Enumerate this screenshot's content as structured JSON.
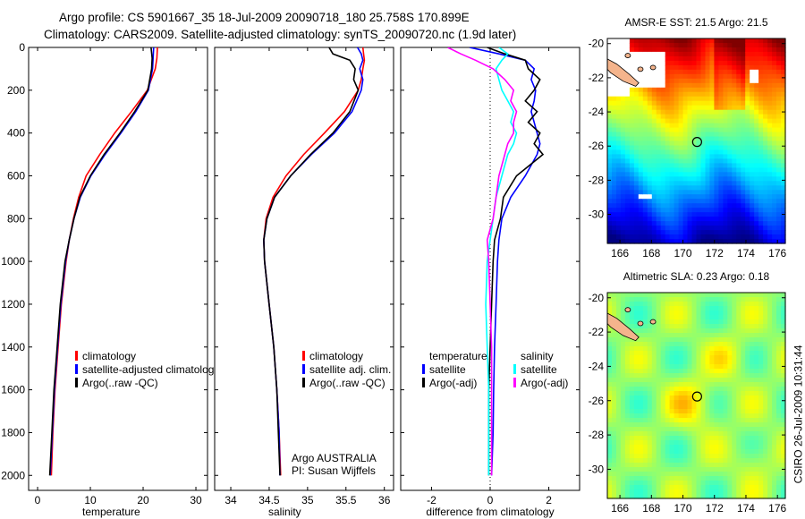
{
  "header": {
    "line1": "Argo profile: CS 5901667_35 18-Jul-2009 20090718_180 25.758S 170.899E",
    "line2": "Climatology: CARS2009. Satellite-adjusted climatology: synTS_20090720.nc (1.9d later)"
  },
  "footer": {
    "timestamp": "CSIRO 26-Jul-2009 10:31:44",
    "institution": "Argo AUSTRALIA",
    "pi": "PI: Susan Wijffels"
  },
  "colors": {
    "red": "#ff0000",
    "blue": "#0000ff",
    "black": "#000000",
    "cyan": "#00ffff",
    "magenta": "#ff00ff"
  },
  "chart_data": [
    {
      "type": "line",
      "xlabel": "temperature",
      "ylabel": "",
      "xlim": [
        -1.7,
        32.2
      ],
      "ylim": [
        2070,
        0
      ],
      "xticks": [
        0,
        10,
        20,
        30
      ],
      "yticks": [
        0,
        200,
        400,
        600,
        800,
        1000,
        1200,
        1400,
        1600,
        1800,
        2000
      ],
      "depth": [
        0,
        50,
        100,
        200,
        300,
        400,
        500,
        600,
        700,
        800,
        900,
        1000,
        1200,
        1400,
        1600,
        1800,
        2000
      ],
      "series": [
        {
          "name": "climatology",
          "color": "#ff0000",
          "values": [
            22.7,
            22.6,
            22.3,
            20.8,
            17.8,
            14.6,
            11.8,
            9.2,
            7.8,
            6.8,
            6.0,
            5.4,
            4.5,
            3.9,
            3.3,
            2.9,
            2.6
          ]
        },
        {
          "name": "satellite-adjusted climatology",
          "color": "#0000ff",
          "values": [
            22.0,
            21.9,
            21.8,
            21.0,
            18.6,
            15.8,
            12.8,
            10.1,
            8.1,
            6.9,
            6.0,
            5.3,
            4.4,
            3.8,
            3.2,
            2.8,
            2.4
          ]
        },
        {
          "name": "Argo(..raw -QC)",
          "color": "#000000",
          "values": [
            21.5,
            21.7,
            21.6,
            20.9,
            18.4,
            15.6,
            12.6,
            10.0,
            8.0,
            6.9,
            6.0,
            5.2,
            4.3,
            3.7,
            3.1,
            2.7,
            2.3
          ]
        }
      ]
    },
    {
      "type": "line",
      "xlabel": "salinity",
      "xlim": [
        33.79,
        36.12
      ],
      "ylim": [
        2070,
        0
      ],
      "xticks": [
        34,
        34.5,
        35,
        35.5,
        36
      ],
      "depth": [
        0,
        30,
        60,
        100,
        150,
        200,
        300,
        400,
        500,
        600,
        700,
        800,
        900,
        1000,
        1200,
        1400,
        1600,
        1800,
        2000
      ],
      "series": [
        {
          "name": "climatology",
          "color": "#ff0000",
          "values": [
            35.72,
            35.73,
            35.74,
            35.72,
            35.7,
            35.66,
            35.48,
            35.22,
            34.95,
            34.72,
            34.55,
            34.46,
            34.43,
            34.44,
            34.5,
            34.56,
            34.6,
            34.63,
            34.65
          ]
        },
        {
          "name": "satellite adj. clim.",
          "color": "#0000ff",
          "values": [
            35.65,
            35.7,
            35.72,
            35.68,
            35.72,
            35.7,
            35.58,
            35.35,
            35.05,
            34.78,
            34.57,
            34.47,
            34.43,
            34.44,
            34.5,
            34.56,
            34.6,
            34.63,
            34.64
          ]
        },
        {
          "name": "Argo(..raw -QC)",
          "color": "#000000",
          "values": [
            35.28,
            35.33,
            35.55,
            35.62,
            35.6,
            35.66,
            35.55,
            35.33,
            35.04,
            34.78,
            34.57,
            34.47,
            34.43,
            34.44,
            34.5,
            34.56,
            34.6,
            34.62,
            34.64
          ]
        }
      ]
    },
    {
      "type": "line",
      "xlabel": "difference from climatology",
      "xlim": [
        -3.05,
        3.05
      ],
      "ylim": [
        2070,
        0
      ],
      "xticks": [
        -2,
        0,
        2
      ],
      "legend_headers": [
        "temperature",
        "salinity"
      ],
      "depth": [
        0,
        30,
        60,
        100,
        150,
        200,
        250,
        300,
        350,
        400,
        450,
        500,
        600,
        700,
        800,
        900,
        1000,
        1200,
        1400,
        1600,
        1800,
        2000
      ],
      "series": [
        {
          "name": "satellite",
          "group": "temperature",
          "color": "#0000ff",
          "values": [
            -0.7,
            0.3,
            1.2,
            1.5,
            1.4,
            1.55,
            1.5,
            1.4,
            1.5,
            1.6,
            1.7,
            1.6,
            1.2,
            0.7,
            0.4,
            0.3,
            0.25,
            0.2,
            0.15,
            0.12,
            0.1,
            0.05
          ]
        },
        {
          "name": "Argo(-adj)",
          "group": "temperature",
          "color": "#000000",
          "values": [
            -0.1,
            0.5,
            1.2,
            1.3,
            1.7,
            1.5,
            1.2,
            1.6,
            1.3,
            1.7,
            1.5,
            1.8,
            0.9,
            0.45,
            0.35,
            0.15,
            0.1,
            0.05,
            0.0,
            -0.05,
            -0.05,
            -0.05
          ]
        },
        {
          "name": "satellite",
          "group": "salinity",
          "color": "#00ffff",
          "values": [
            0.3,
            0.6,
            0.4,
            0.2,
            0.3,
            0.4,
            0.6,
            0.8,
            0.7,
            0.9,
            0.8,
            0.6,
            0.4,
            0.2,
            0.1,
            0.0,
            -0.1,
            -0.15,
            -0.1,
            -0.05,
            -0.05,
            -0.05
          ]
        },
        {
          "name": "Argo(-adj)",
          "group": "salinity",
          "color": "#ff00ff",
          "values": [
            -1.45,
            -1.0,
            -0.5,
            0.1,
            0.5,
            0.8,
            0.7,
            0.9,
            0.8,
            0.8,
            0.6,
            0.5,
            0.3,
            0.2,
            0.1,
            -0.1,
            -0.05,
            0.0,
            0.05,
            0.05,
            0.05,
            0.05
          ]
        }
      ]
    },
    {
      "type": "heatmap",
      "title": "AMSR-E SST: 21.5 Argo: 21.5",
      "xlim": [
        165.2,
        176.5
      ],
      "ylim": [
        -31.7,
        -19.7
      ],
      "xticks": [
        166,
        168,
        170,
        172,
        174,
        176
      ],
      "yticks": [
        -20,
        -22,
        -24,
        -26,
        -28,
        -30
      ],
      "marker": {
        "lon": 170.899,
        "lat": -25.758
      }
    },
    {
      "type": "heatmap",
      "title": "Altimetric SLA: 0.23 Argo: 0.18",
      "xlim": [
        165.2,
        176.5
      ],
      "ylim": [
        -31.7,
        -19.7
      ],
      "xticks": [
        166,
        168,
        170,
        172,
        174,
        176
      ],
      "yticks": [
        -20,
        -22,
        -24,
        -26,
        -28,
        -30
      ],
      "marker": {
        "lon": 170.899,
        "lat": -25.758
      }
    }
  ]
}
